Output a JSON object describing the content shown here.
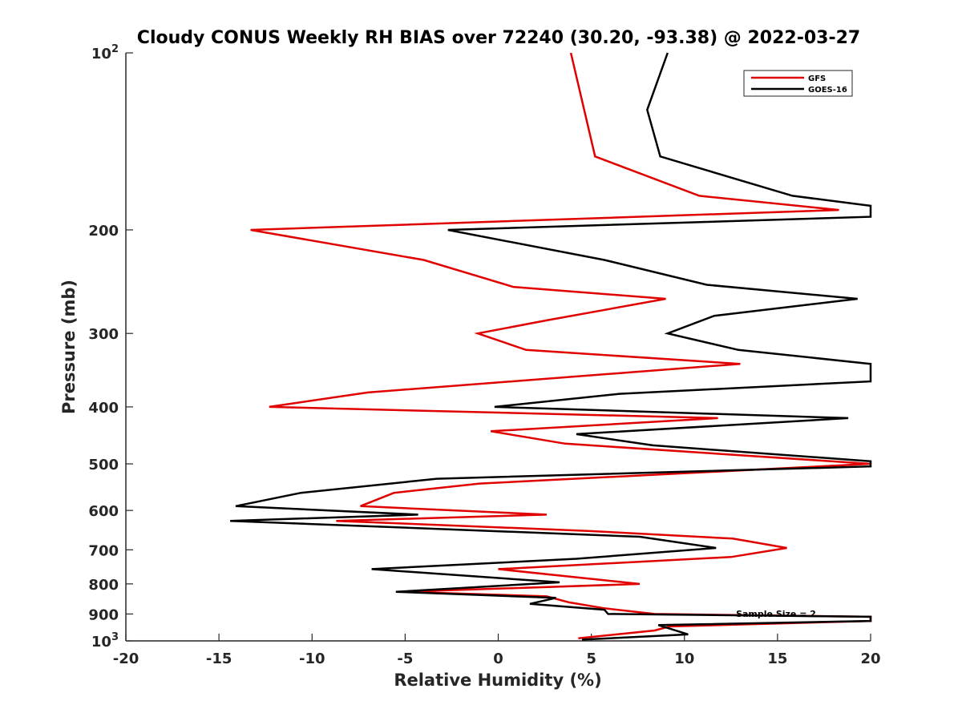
{
  "chart_data": {
    "type": "line",
    "orientation": "profile",
    "title": "Cloudy CONUS Weekly RH BIAS over 72240 (30.20, -93.38) @ 2022-03-27",
    "xlabel": "Relative Humidity (%)",
    "ylabel": "Pressure (mb)",
    "xlim": [
      -20,
      20
    ],
    "ylim": [
      100,
      1000
    ],
    "yscale": "log",
    "yreverse": true,
    "x_ticks": [
      -20,
      -15,
      -10,
      -5,
      0,
      5,
      10,
      15,
      20
    ],
    "x_tick_labels": [
      "-20",
      "-15",
      "-10",
      "-5",
      "0",
      "5",
      "10",
      "15",
      "20"
    ],
    "y_ticks": [
      100,
      200,
      300,
      400,
      500,
      600,
      700,
      800,
      900,
      1000
    ],
    "y_tick_labels": [
      {
        "base": "10",
        "exp": "2"
      },
      {
        "base": "200",
        "exp": ""
      },
      {
        "base": "300",
        "exp": ""
      },
      {
        "base": "400",
        "exp": ""
      },
      {
        "base": "500",
        "exp": ""
      },
      {
        "base": "600",
        "exp": ""
      },
      {
        "base": "700",
        "exp": ""
      },
      {
        "base": "800",
        "exp": ""
      },
      {
        "base": "900",
        "exp": ""
      },
      {
        "base": "10",
        "exp": "3"
      }
    ],
    "legend_position": "top-right",
    "annotation": "Sample Size = 2",
    "series": [
      {
        "name": "GFS",
        "color": "#e00000",
        "points": [
          [
            3.9,
            100
          ],
          [
            5.2,
            150
          ],
          [
            10.8,
            175
          ],
          [
            18.3,
            185
          ],
          [
            -13.3,
            200
          ],
          [
            -4,
            225
          ],
          [
            0.8,
            250
          ],
          [
            9,
            262
          ],
          [
            2.6,
            285
          ],
          [
            -1.1,
            300
          ],
          [
            1.5,
            320
          ],
          [
            13,
            338
          ],
          [
            -7,
            378
          ],
          [
            -12.3,
            400
          ],
          [
            11.8,
            418
          ],
          [
            -0.4,
            440
          ],
          [
            3.6,
            462
          ],
          [
            20,
            500
          ],
          [
            -1,
            540
          ],
          [
            -5.6,
            560
          ],
          [
            -7.4,
            590
          ],
          [
            2.6,
            610
          ],
          [
            -8.7,
            625
          ],
          [
            4.8,
            650
          ],
          [
            12.6,
            670
          ],
          [
            15.5,
            695
          ],
          [
            12.5,
            720
          ],
          [
            0,
            755
          ],
          [
            7.6,
            800
          ],
          [
            -5.1,
            825
          ],
          [
            2.6,
            840
          ],
          [
            3.8,
            860
          ],
          [
            5.7,
            880
          ],
          [
            8.4,
            900
          ],
          [
            20,
            910
          ],
          [
            20,
            925
          ],
          [
            9.2,
            945
          ],
          [
            8.4,
            960
          ],
          [
            4.3,
            990
          ]
        ]
      },
      {
        "name": "GOES-16",
        "color": "#000000",
        "points": [
          [
            9.1,
            100
          ],
          [
            8,
            125
          ],
          [
            8.7,
            150
          ],
          [
            15.8,
            175
          ],
          [
            20,
            182
          ],
          [
            20,
            190
          ],
          [
            -2.7,
            200
          ],
          [
            5.7,
            225
          ],
          [
            11.2,
            248
          ],
          [
            19.3,
            262
          ],
          [
            11.6,
            280
          ],
          [
            9.1,
            300
          ],
          [
            12.9,
            320
          ],
          [
            20,
            338
          ],
          [
            20,
            362
          ],
          [
            6.5,
            380
          ],
          [
            -0.2,
            400
          ],
          [
            18.8,
            418
          ],
          [
            4.2,
            445
          ],
          [
            8.3,
            465
          ],
          [
            20,
            495
          ],
          [
            20,
            505
          ],
          [
            -3.3,
            530
          ],
          [
            -10.6,
            560
          ],
          [
            -14.1,
            590
          ],
          [
            -4.3,
            610
          ],
          [
            -14.4,
            625
          ],
          [
            7.6,
            665
          ],
          [
            11.7,
            695
          ],
          [
            4.2,
            725
          ],
          [
            -6.8,
            755
          ],
          [
            3.3,
            795
          ],
          [
            -5.5,
            825
          ],
          [
            3.1,
            845
          ],
          [
            1.7,
            865
          ],
          [
            5.7,
            885
          ],
          [
            5.9,
            900
          ],
          [
            20,
            910
          ],
          [
            20,
            925
          ],
          [
            8.6,
            940
          ],
          [
            9.3,
            955
          ],
          [
            10.2,
            975
          ],
          [
            4.5,
            995
          ]
        ]
      }
    ]
  }
}
